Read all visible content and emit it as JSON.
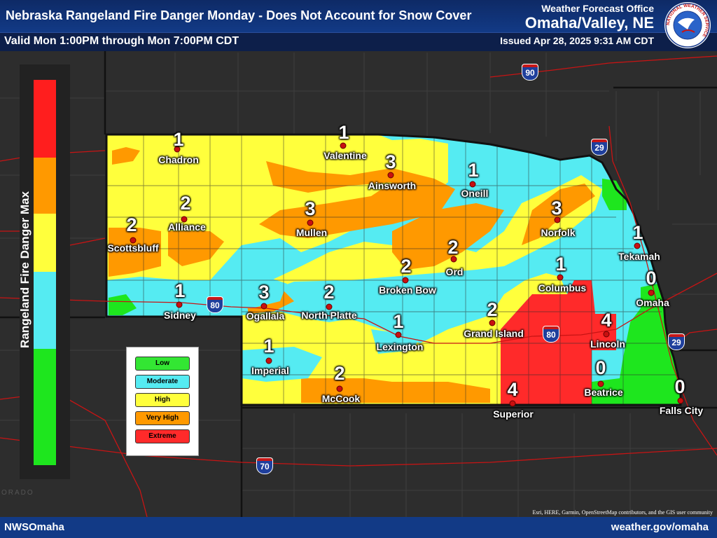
{
  "header": {
    "title": "Nebraska Rangeland Fire Danger Monday - Does Not Account for Snow Cover",
    "valid": "Valid Mon 1:00PM through Mon 7:00PM CDT",
    "wfo_label": "Weather Forecast Office",
    "office": "Omaha/Valley, NE",
    "issued": "Issued Apr 28, 2025 9:31 AM CDT",
    "logo_text": "NATIONAL WEATHER SERVICE"
  },
  "footer": {
    "left": "NWSOmaha",
    "right": "weather.gov/omaha",
    "attribution": "Esri, HERE, Garmin, OpenStreetMap contributors, and the GIS user community"
  },
  "basemap": {
    "colorado_label": "ORADO"
  },
  "colorbar": {
    "label": "Rangeland Fire Danger Max",
    "colors": [
      "#ff1e1e",
      "#ff9900",
      "#ffff3c",
      "#55ebf2",
      "#1ee61e"
    ]
  },
  "legend": {
    "items": [
      {
        "label": "Low",
        "color": "#33e633"
      },
      {
        "label": "Moderate",
        "color": "#55ebf2"
      },
      {
        "label": "High",
        "color": "#ffff3c"
      },
      {
        "label": "Very High",
        "color": "#ff9900"
      },
      {
        "label": "Extreme",
        "color": "#ff2a2a"
      }
    ]
  },
  "highways": [
    "90",
    "29",
    "80",
    "80",
    "29",
    "70"
  ],
  "cities": [
    {
      "name": "Chadron",
      "value": "1"
    },
    {
      "name": "Valentine",
      "value": "1"
    },
    {
      "name": "Ainsworth",
      "value": "3"
    },
    {
      "name": "Oneill",
      "value": "1"
    },
    {
      "name": "Alliance",
      "value": "2"
    },
    {
      "name": "Scottsbluff",
      "value": "2"
    },
    {
      "name": "Mullen",
      "value": "3"
    },
    {
      "name": "Norfolk",
      "value": "3"
    },
    {
      "name": "Tekamah",
      "value": "1"
    },
    {
      "name": "Ord",
      "value": "2"
    },
    {
      "name": "Broken Bow",
      "value": "2"
    },
    {
      "name": "Columbus",
      "value": "1"
    },
    {
      "name": "Omaha",
      "value": "0"
    },
    {
      "name": "Sidney",
      "value": "1"
    },
    {
      "name": "Ogallala",
      "value": "3"
    },
    {
      "name": "North Platte",
      "value": "2"
    },
    {
      "name": "Lexington",
      "value": "1"
    },
    {
      "name": "Grand Island",
      "value": "2"
    },
    {
      "name": "Lincoln",
      "value": "4"
    },
    {
      "name": "Imperial",
      "value": "1"
    },
    {
      "name": "McCook",
      "value": "2"
    },
    {
      "name": "Beatrice",
      "value": "0"
    },
    {
      "name": "Superior",
      "value": "4"
    },
    {
      "name": "Falls City",
      "value": "0"
    }
  ]
}
